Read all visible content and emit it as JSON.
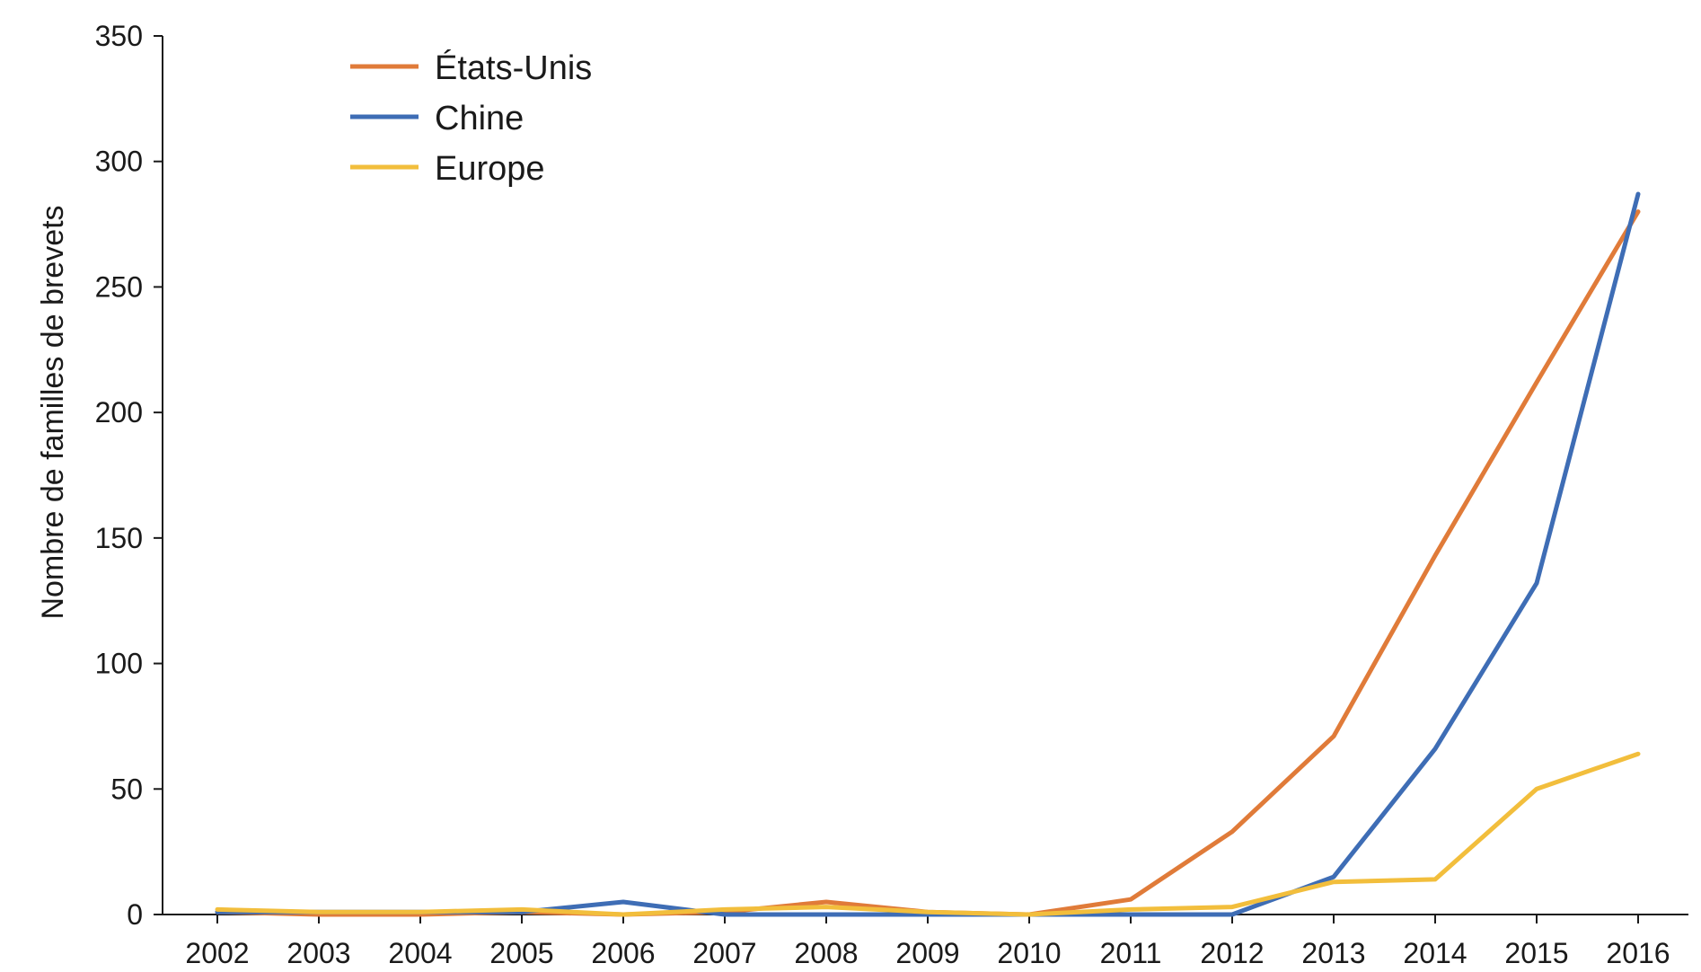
{
  "chart_data": {
    "type": "line",
    "title": "",
    "xlabel": "",
    "ylabel": "Nombre de familles de brevets",
    "categories": [
      "2002",
      "2003",
      "2004",
      "2005",
      "2006",
      "2007",
      "2008",
      "2009",
      "2010",
      "2011",
      "2012",
      "2013",
      "2014",
      "2015",
      "2016"
    ],
    "ylim": [
      0,
      350
    ],
    "yticks": [
      0,
      50,
      100,
      150,
      200,
      250,
      300,
      350
    ],
    "grid": false,
    "legend_position": "top-left",
    "series": [
      {
        "name": "États-Unis",
        "color": "#E07B39",
        "values": [
          1,
          0,
          0,
          1,
          0,
          1,
          5,
          1,
          0,
          6,
          33,
          71,
          143,
          212,
          280
        ]
      },
      {
        "name": "Chine",
        "color": "#3E6DB5",
        "values": [
          1,
          1,
          1,
          1,
          5,
          0,
          0,
          0,
          0,
          0,
          0,
          15,
          66,
          132,
          287
        ]
      },
      {
        "name": "Europe",
        "color": "#F2BE3C",
        "values": [
          2,
          1,
          1,
          2,
          0,
          2,
          3,
          1,
          0,
          2,
          3,
          13,
          14,
          50,
          64
        ]
      }
    ]
  }
}
